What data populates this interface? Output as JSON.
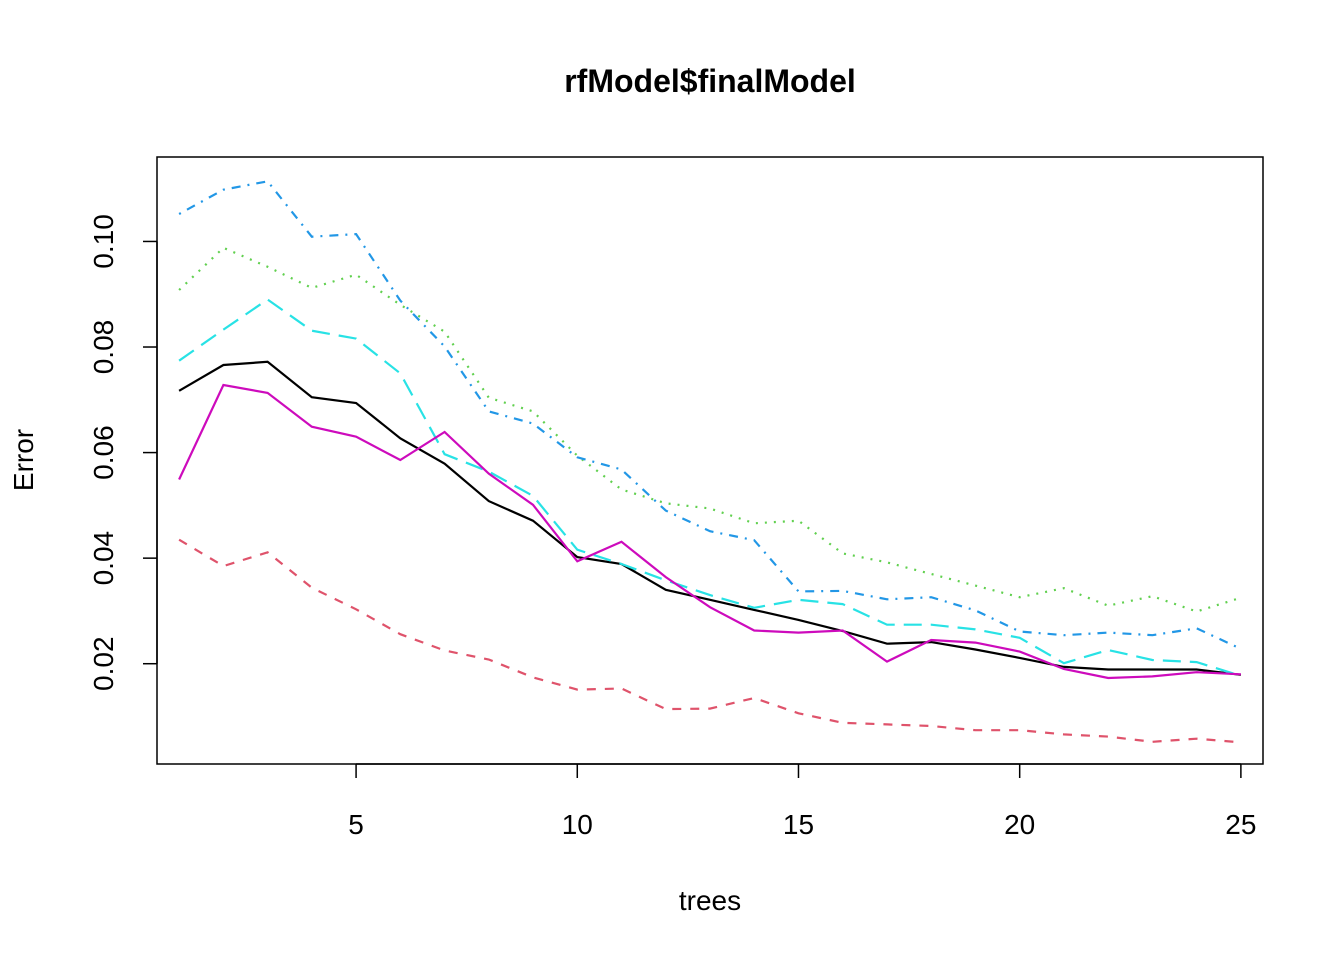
{
  "chart_data": {
    "type": "line",
    "title": "rfModel$finalModel",
    "xlabel": "trees",
    "ylabel": "Error",
    "xlim": [
      0.5,
      25.5
    ],
    "ylim": [
      0.001,
      0.116
    ],
    "x_ticks": [
      5,
      10,
      15,
      20,
      25
    ],
    "x_tick_labels": [
      "5",
      "10",
      "15",
      "20",
      "25"
    ],
    "y_ticks": [
      0.02,
      0.04,
      0.06,
      0.08,
      0.1
    ],
    "y_tick_labels": [
      "0.02",
      "0.04",
      "0.06",
      "0.08",
      "0.10"
    ],
    "grid": false,
    "legend": "none",
    "x": [
      1,
      2,
      3,
      4,
      5,
      6,
      7,
      8,
      9,
      10,
      11,
      12,
      13,
      14,
      15,
      16,
      17,
      18,
      19,
      20,
      21,
      22,
      23,
      24,
      25
    ],
    "series": [
      {
        "color": "#000000",
        "dash": "solid",
        "values": [
          0.0717,
          0.0766,
          0.0772,
          0.0705,
          0.0694,
          0.0627,
          0.0579,
          0.0508,
          0.0471,
          0.0402,
          0.0389,
          0.034,
          0.0321,
          0.0302,
          0.0283,
          0.0262,
          0.0238,
          0.0241,
          0.0227,
          0.0211,
          0.0194,
          0.0189,
          0.0189,
          0.0189,
          0.0179
        ]
      },
      {
        "color": "#DF536B",
        "dash": "dashed",
        "values": [
          0.0435,
          0.0385,
          0.0411,
          0.0344,
          0.0303,
          0.0256,
          0.0225,
          0.0208,
          0.0174,
          0.0151,
          0.0153,
          0.0114,
          0.0115,
          0.0135,
          0.0106,
          0.0088,
          0.0085,
          0.0082,
          0.0074,
          0.0074,
          0.0066,
          0.0062,
          0.0052,
          0.0058,
          0.0051
        ]
      },
      {
        "color": "#61D04F",
        "dash": "dotted",
        "values": [
          0.0908,
          0.0988,
          0.0952,
          0.0912,
          0.0937,
          0.088,
          0.0829,
          0.0704,
          0.0678,
          0.0594,
          0.053,
          0.0504,
          0.0494,
          0.0466,
          0.0471,
          0.0409,
          0.0392,
          0.037,
          0.0348,
          0.0326,
          0.0343,
          0.031,
          0.0328,
          0.0299,
          0.0325
        ]
      },
      {
        "color": "#2297E6",
        "dash": "dotdash",
        "values": [
          0.1052,
          0.1098,
          0.1114,
          0.1009,
          0.1014,
          0.0888,
          0.0801,
          0.0678,
          0.0655,
          0.0591,
          0.0568,
          0.049,
          0.0451,
          0.0434,
          0.0337,
          0.0338,
          0.0322,
          0.0326,
          0.0301,
          0.0261,
          0.0254,
          0.0259,
          0.0254,
          0.0267,
          0.0228
        ]
      },
      {
        "color": "#28E2E5",
        "dash": "longdash",
        "values": [
          0.0774,
          0.0833,
          0.089,
          0.0831,
          0.0816,
          0.075,
          0.0597,
          0.0564,
          0.0518,
          0.0416,
          0.0389,
          0.0358,
          0.033,
          0.0306,
          0.0321,
          0.0313,
          0.0274,
          0.0274,
          0.0265,
          0.0249,
          0.0201,
          0.0226,
          0.0207,
          0.0203,
          0.0177
        ]
      },
      {
        "color": "#CD0BBC",
        "dash": "solid",
        "values": [
          0.0549,
          0.0728,
          0.0713,
          0.0649,
          0.063,
          0.0586,
          0.0639,
          0.056,
          0.0501,
          0.0394,
          0.0431,
          0.0364,
          0.0307,
          0.0263,
          0.0259,
          0.0263,
          0.0204,
          0.0245,
          0.024,
          0.0223,
          0.019,
          0.0173,
          0.0176,
          0.0184,
          0.018
        ]
      }
    ]
  }
}
